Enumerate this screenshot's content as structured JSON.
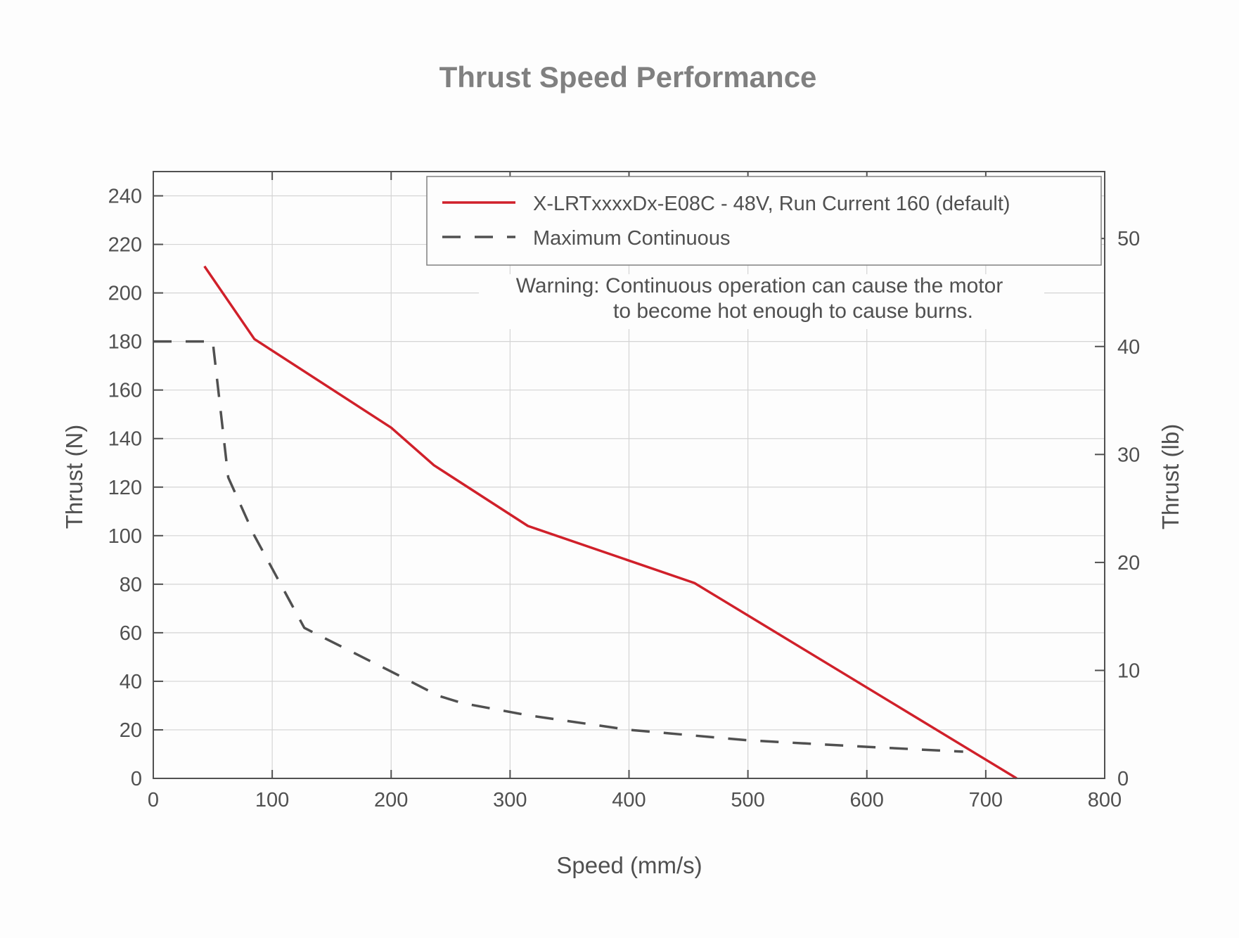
{
  "chart_data": {
    "type": "line",
    "title": "Thrust Speed Performance",
    "xlabel": "Speed (mm/s)",
    "ylabel": "Thrust (N)",
    "ylabel_right": "Thrust (lb)",
    "xlim": [
      0,
      800
    ],
    "ylim": [
      0,
      250
    ],
    "ylim_right": [
      0,
      56.2
    ],
    "xticks": [
      "0",
      "100",
      "200",
      "300",
      "400",
      "500",
      "600",
      "700",
      "800"
    ],
    "yticks": [
      "0",
      "20",
      "40",
      "60",
      "80",
      "100",
      "120",
      "140",
      "160",
      "180",
      "200",
      "220",
      "240"
    ],
    "yticks_right": [
      "0",
      "10",
      "20",
      "30",
      "40",
      "50"
    ],
    "grid": true,
    "legend_position": "top-right",
    "annotation": [
      "Warning: Continuous operation can cause the motor",
      "to become hot enough to cause burns."
    ],
    "series": [
      {
        "name": "X-LRTxxxxDx-E08C - 48V, Run Current 160 (default)",
        "style": "solid",
        "color": "#d0202a",
        "x": [
          43,
          85,
          200,
          236,
          315,
          455,
          726
        ],
        "y": [
          211,
          181,
          144.5,
          129,
          104,
          80.5,
          0
        ]
      },
      {
        "name": "Maximum Continuous",
        "style": "dashed",
        "color": "#505050",
        "x": [
          0,
          50,
          63,
          85,
          127,
          200,
          240,
          260,
          315,
          400,
          500,
          600,
          681
        ],
        "y": [
          180,
          180,
          124,
          100,
          62,
          44,
          34,
          31,
          26,
          20,
          15.7,
          13,
          11
        ]
      }
    ]
  }
}
